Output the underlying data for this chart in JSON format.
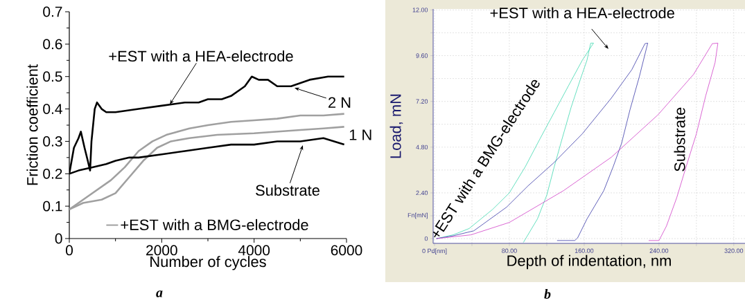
{
  "chart_data": [
    {
      "type": "line",
      "xlabel": "Number of cycles",
      "ylabel": "Friction coefficient",
      "xlim": [
        0,
        6000
      ],
      "ylim": [
        0,
        0.7
      ],
      "xticks": [
        0,
        2000,
        4000,
        6000
      ],
      "yticks": [
        0,
        0.1,
        0.2,
        0.3,
        0.4,
        0.5,
        0.6,
        0.7
      ],
      "legend": "bottom",
      "series": [
        {
          "name": "+EST with a BMG-electrode",
          "color": "#a0a0a0",
          "x": [
            0,
            300,
            600,
            900,
            1200,
            1500,
            1800,
            2100,
            2600,
            3000,
            3500,
            4000,
            4500,
            5000,
            5500,
            5950
          ],
          "values": [
            0.09,
            0.12,
            0.15,
            0.18,
            0.22,
            0.27,
            0.3,
            0.32,
            0.34,
            0.35,
            0.36,
            0.365,
            0.37,
            0.38,
            0.38,
            0.385
          ]
        },
        {
          "color": "#a0a0a0",
          "x": [
            0,
            300,
            700,
            1000,
            1300,
            1600,
            1900,
            2200,
            2600,
            3200,
            4000,
            4500,
            5000,
            5500,
            5950
          ],
          "values": [
            0.09,
            0.11,
            0.12,
            0.14,
            0.19,
            0.24,
            0.28,
            0.3,
            0.31,
            0.32,
            0.325,
            0.33,
            0.335,
            0.34,
            0.345
          ]
        },
        {
          "color": "#000000",
          "x": [
            0,
            200,
            500,
            800,
            1000,
            1300,
            1500,
            2000,
            2500,
            3000,
            3500,
            4000,
            4500,
            5000,
            5500,
            5950
          ],
          "values": [
            0.2,
            0.21,
            0.22,
            0.23,
            0.24,
            0.25,
            0.25,
            0.26,
            0.27,
            0.28,
            0.29,
            0.29,
            0.3,
            0.3,
            0.31,
            0.29
          ]
        },
        {
          "color": "#000000",
          "x": [
            0,
            100,
            200,
            250,
            330,
            400,
            450,
            480,
            550,
            600,
            700,
            800,
            1000,
            1500,
            2000,
            2500,
            2800,
            3000,
            3300,
            3500,
            3700,
            3800,
            3950,
            4100,
            4300,
            4500,
            4800,
            5200,
            5600,
            5950
          ],
          "values": [
            0.2,
            0.28,
            0.31,
            0.33,
            0.28,
            0.24,
            0.21,
            0.3,
            0.4,
            0.42,
            0.4,
            0.39,
            0.39,
            0.4,
            0.41,
            0.42,
            0.42,
            0.43,
            0.43,
            0.44,
            0.46,
            0.47,
            0.5,
            0.49,
            0.49,
            0.47,
            0.47,
            0.49,
            0.5,
            0.5
          ]
        }
      ],
      "annotations": [
        {
          "text": "+EST with a HEA-electrode",
          "x": 2175,
          "y": 0.414
        },
        {
          "text": "2 N",
          "x": 4875,
          "y": 0.465
        },
        "1 N",
        {
          "text": "Substrate",
          "x": 5055,
          "y": 0.288
        },
        "a"
      ]
    },
    {
      "type": "line",
      "xlabel": "Depth of indentation, nm",
      "ylabel": "Load, mN",
      "xlim": [
        -1.5,
        332
      ],
      "ylim": [
        -0.25,
        12.05
      ],
      "grid": true,
      "xticks": [
        {
          "value": 0,
          "label": "0 Pd[nm]"
        },
        {
          "value": 40,
          "label": null
        },
        {
          "value": 80,
          "label": "80.00"
        },
        {
          "value": 120,
          "label": null
        },
        {
          "value": 160,
          "label": "160.00"
        },
        {
          "value": 200,
          "label": null
        },
        {
          "value": 240,
          "label": "240.00"
        },
        {
          "value": 280,
          "label": null
        },
        {
          "value": 320,
          "label": "320.00"
        }
      ],
      "yticks": [
        0,
        {
          "value": 1.2,
          "label": "Fn[mN]"
        },
        {
          "value": 2.4,
          "label": "2.40"
        },
        {
          "value": 3.6,
          "label": null
        },
        {
          "value": 4.8,
          "label": "4.80"
        },
        {
          "value": 6.0,
          "label": null
        },
        {
          "value": 7.2,
          "label": "7.20"
        },
        {
          "value": 8.4,
          "label": null
        },
        {
          "value": 9.6,
          "label": "9.60"
        },
        {
          "value": 10.8,
          "label": null
        },
        {
          "value": 12,
          "label": "12.00"
        }
      ],
      "series": [
        {
          "name": "+EST with a BMG-electrode",
          "color": "#40d8b0",
          "x": [
            2,
            20,
            37,
            62,
            80,
            97,
            113,
            128,
            143,
            158,
            170,
            167,
            163,
            156,
            146,
            135,
            128,
            120,
            110,
            95
          ],
          "values": [
            0,
            0.2,
            0.53,
            1.53,
            2.4,
            3.77,
            5.26,
            6.63,
            8.0,
            9.36,
            10.26,
            10.26,
            9.36,
            8.37,
            6.88,
            5.0,
            3.77,
            2.28,
            1.03,
            -0.2
          ]
        },
        {
          "name": "+EST with a HEA-electrode",
          "color": "#3a3aa8",
          "x": [
            2,
            20,
            42,
            77,
            100,
            128,
            158,
            189,
            211,
            225,
            228,
            219,
            209,
            200,
            191,
            181,
            163,
            153,
            150,
            131
          ],
          "values": [
            0,
            0.15,
            0.41,
            1.65,
            2.77,
            4.0,
            5.5,
            7.37,
            8.87,
            10.23,
            10.26,
            8.5,
            6.76,
            5.0,
            3.77,
            2.52,
            1.03,
            0.04,
            -0.1,
            -0.1
          ]
        },
        {
          "name": "Substrate",
          "color": "#d040c8",
          "x": [
            2,
            39,
            80,
            138,
            189,
            239,
            277,
            297,
            303,
            300,
            290,
            280,
            269,
            259,
            248,
            240,
            229
          ],
          "values": [
            0,
            0.2,
            0.85,
            2.52,
            4.27,
            6.5,
            8.62,
            10.23,
            10.26,
            9.24,
            7.5,
            5.5,
            3.77,
            2.15,
            0.66,
            -0.1,
            -0.1
          ]
        }
      ],
      "annotations": [
        "b"
      ]
    }
  ]
}
